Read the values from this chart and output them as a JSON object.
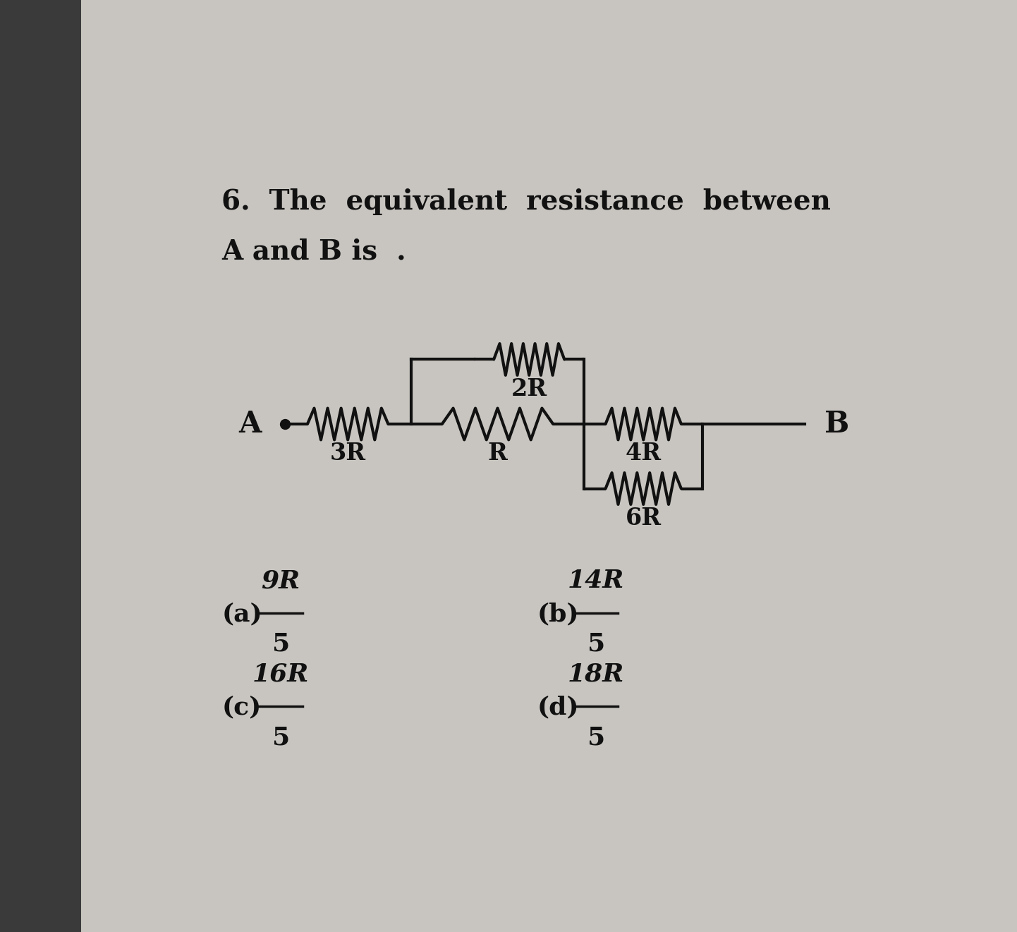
{
  "bg_left_color": "#3a3a3a",
  "bg_page_color": "#c8c5c0",
  "title_line1": "6.  The  equivalent  resistance  between",
  "title_line2": "A and B is  .",
  "title_fontsize": 28,
  "circuit_lw": 3.0,
  "circuit_color": "#111111",
  "options": [
    {
      "label": "(a)",
      "numerator": "9R",
      "denominator": "5",
      "col": 0,
      "row": 0
    },
    {
      "label": "(b)",
      "numerator": "14R",
      "denominator": "5",
      "col": 1,
      "row": 0
    },
    {
      "label": "(c)",
      "numerator": "16R",
      "denominator": "5",
      "col": 0,
      "row": 1
    },
    {
      "label": "(d)",
      "numerator": "18R",
      "denominator": "5",
      "col": 1,
      "row": 1
    }
  ]
}
